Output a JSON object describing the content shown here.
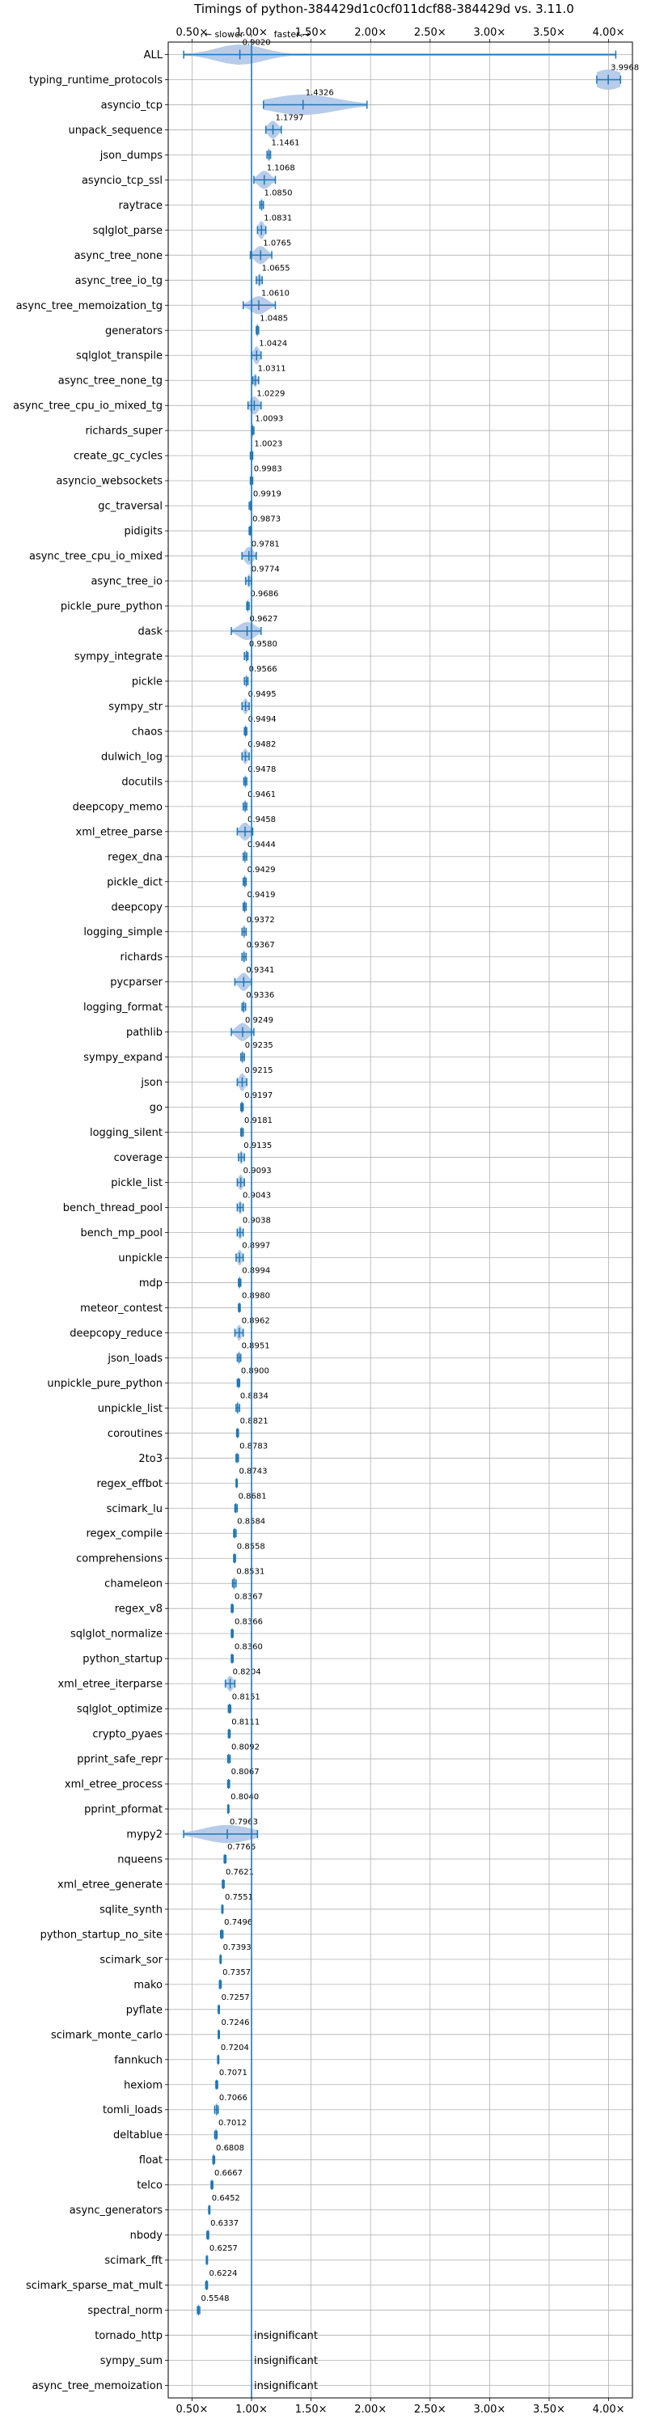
{
  "chart_data": {
    "type": "violin",
    "title": "Timings of python-384429d1c0cf011dcf88-384429d vs. 3.11.0",
    "direction_labels": [
      "← slower",
      "faster →"
    ],
    "xlim": [
      0.3,
      4.2
    ],
    "x_ticks": [
      0.5,
      1.0,
      1.5,
      2.0,
      2.5,
      3.0,
      3.5,
      4.0
    ],
    "x_tick_labels": [
      "0.50×",
      "1.00×",
      "1.50×",
      "2.00×",
      "2.50×",
      "3.00×",
      "3.50×",
      "4.00×"
    ],
    "reference_line": 1.0,
    "grid": true,
    "colors": {
      "violin": "#aec7e8",
      "line": "#1f77b4"
    },
    "insignificant_label": "insignificant",
    "rows": [
      {
        "name": "ALL",
        "value": 0.902,
        "label": "0.9020",
        "min": 0.43,
        "max": 4.06,
        "spread": 0.2,
        "height": 0.9
      },
      {
        "name": "typing_runtime_protocols",
        "value": 3.9968,
        "label": "3.9968",
        "min": 3.9,
        "max": 4.1,
        "spread": 0.12,
        "height": 0.9
      },
      {
        "name": "asyncio_tcp",
        "value": 1.4326,
        "label": "1.4326",
        "min": 1.1,
        "max": 1.97,
        "spread": 0.28,
        "height": 0.9
      },
      {
        "name": "unpack_sequence",
        "value": 1.1797,
        "label": "1.1797",
        "min": 1.12,
        "max": 1.25,
        "spread": 0.04,
        "height": 0.8
      },
      {
        "name": "json_dumps",
        "value": 1.1461,
        "label": "1.1461",
        "min": 1.13,
        "max": 1.16,
        "spread": 0.01,
        "height": 0.6
      },
      {
        "name": "asyncio_tcp_ssl",
        "value": 1.1068,
        "label": "1.1068",
        "min": 1.02,
        "max": 1.2,
        "spread": 0.05,
        "height": 0.8
      },
      {
        "name": "raytrace",
        "value": 1.085,
        "label": "1.0850",
        "min": 1.07,
        "max": 1.1,
        "spread": 0.01,
        "height": 0.6
      },
      {
        "name": "sqlglot_parse",
        "value": 1.0831,
        "label": "1.0831",
        "min": 1.05,
        "max": 1.12,
        "spread": 0.025,
        "height": 0.8
      },
      {
        "name": "async_tree_none",
        "value": 1.0765,
        "label": "1.0765",
        "min": 0.99,
        "max": 1.17,
        "spread": 0.05,
        "height": 0.8
      },
      {
        "name": "async_tree_io_tg",
        "value": 1.0655,
        "label": "1.0655",
        "min": 1.04,
        "max": 1.09,
        "spread": 0.015,
        "height": 0.6
      },
      {
        "name": "async_tree_memoization_tg",
        "value": 1.061,
        "label": "1.0610",
        "min": 0.93,
        "max": 1.2,
        "spread": 0.07,
        "height": 0.8
      },
      {
        "name": "generators",
        "value": 1.0485,
        "label": "1.0485",
        "min": 1.04,
        "max": 1.06,
        "spread": 0.01,
        "height": 0.6
      },
      {
        "name": "sqlglot_transpile",
        "value": 1.0424,
        "label": "1.0424",
        "min": 1.0,
        "max": 1.08,
        "spread": 0.025,
        "height": 0.8
      },
      {
        "name": "async_tree_none_tg",
        "value": 1.0311,
        "label": "1.0311",
        "min": 1.01,
        "max": 1.06,
        "spread": 0.015,
        "height": 0.6
      },
      {
        "name": "async_tree_cpu_io_mixed_tg",
        "value": 1.0229,
        "label": "1.0229",
        "min": 0.97,
        "max": 1.08,
        "spread": 0.035,
        "height": 0.8
      },
      {
        "name": "richards_super",
        "value": 1.0093,
        "label": "1.0093",
        "min": 1.0,
        "max": 1.02,
        "spread": 0.008,
        "height": 0.6
      },
      {
        "name": "create_gc_cycles",
        "value": 1.0023,
        "label": "1.0023",
        "min": 0.99,
        "max": 1.01,
        "spread": 0.008,
        "height": 0.6
      },
      {
        "name": "asyncio_websockets",
        "value": 0.9983,
        "label": "0.9983",
        "min": 0.99,
        "max": 1.01,
        "spread": 0.005,
        "height": 0.5
      },
      {
        "name": "gc_traversal",
        "value": 0.9919,
        "label": "0.9919",
        "min": 0.98,
        "max": 1.0,
        "spread": 0.005,
        "height": 0.5
      },
      {
        "name": "pidigits",
        "value": 0.9873,
        "label": "0.9873",
        "min": 0.98,
        "max": 0.995,
        "spread": 0.005,
        "height": 0.5
      },
      {
        "name": "async_tree_cpu_io_mixed",
        "value": 0.9781,
        "label": "0.9781",
        "min": 0.92,
        "max": 1.04,
        "spread": 0.035,
        "height": 0.8
      },
      {
        "name": "async_tree_io",
        "value": 0.9774,
        "label": "0.9774",
        "min": 0.95,
        "max": 1.0,
        "spread": 0.015,
        "height": 0.6
      },
      {
        "name": "pickle_pure_python",
        "value": 0.9686,
        "label": "0.9686",
        "min": 0.96,
        "max": 0.98,
        "spread": 0.008,
        "height": 0.6
      },
      {
        "name": "dask",
        "value": 0.9627,
        "label": "0.9627",
        "min": 0.83,
        "max": 1.08,
        "spread": 0.07,
        "height": 0.8
      },
      {
        "name": "sympy_integrate",
        "value": 0.958,
        "label": "0.9580",
        "min": 0.94,
        "max": 0.97,
        "spread": 0.01,
        "height": 0.6
      },
      {
        "name": "pickle",
        "value": 0.9566,
        "label": "0.9566",
        "min": 0.94,
        "max": 0.97,
        "spread": 0.01,
        "height": 0.6
      },
      {
        "name": "sympy_str",
        "value": 0.9495,
        "label": "0.9495",
        "min": 0.92,
        "max": 0.98,
        "spread": 0.02,
        "height": 0.7
      },
      {
        "name": "chaos",
        "value": 0.9494,
        "label": "0.9494",
        "min": 0.94,
        "max": 0.96,
        "spread": 0.008,
        "height": 0.6
      },
      {
        "name": "dulwich_log",
        "value": 0.9482,
        "label": "0.9482",
        "min": 0.92,
        "max": 0.98,
        "spread": 0.02,
        "height": 0.7
      },
      {
        "name": "docutils",
        "value": 0.9478,
        "label": "0.9478",
        "min": 0.935,
        "max": 0.96,
        "spread": 0.008,
        "height": 0.6
      },
      {
        "name": "deepcopy_memo",
        "value": 0.9461,
        "label": "0.9461",
        "min": 0.93,
        "max": 0.96,
        "spread": 0.01,
        "height": 0.6
      },
      {
        "name": "xml_etree_parse",
        "value": 0.9458,
        "label": "0.9458",
        "min": 0.88,
        "max": 1.01,
        "spread": 0.04,
        "height": 0.8
      },
      {
        "name": "regex_dna",
        "value": 0.9444,
        "label": "0.9444",
        "min": 0.93,
        "max": 0.96,
        "spread": 0.01,
        "height": 0.6
      },
      {
        "name": "pickle_dict",
        "value": 0.9429,
        "label": "0.9429",
        "min": 0.93,
        "max": 0.955,
        "spread": 0.01,
        "height": 0.6
      },
      {
        "name": "deepcopy",
        "value": 0.9419,
        "label": "0.9419",
        "min": 0.93,
        "max": 0.955,
        "spread": 0.01,
        "height": 0.6
      },
      {
        "name": "logging_simple",
        "value": 0.9372,
        "label": "0.9372",
        "min": 0.92,
        "max": 0.955,
        "spread": 0.01,
        "height": 0.6
      },
      {
        "name": "richards",
        "value": 0.9367,
        "label": "0.9367",
        "min": 0.92,
        "max": 0.955,
        "spread": 0.01,
        "height": 0.6
      },
      {
        "name": "pycparser",
        "value": 0.9341,
        "label": "0.9341",
        "min": 0.86,
        "max": 1.0,
        "spread": 0.04,
        "height": 0.8
      },
      {
        "name": "logging_format",
        "value": 0.9336,
        "label": "0.9336",
        "min": 0.92,
        "max": 0.95,
        "spread": 0.01,
        "height": 0.6
      },
      {
        "name": "pathlib",
        "value": 0.9249,
        "label": "0.9249",
        "min": 0.83,
        "max": 1.02,
        "spread": 0.05,
        "height": 0.8
      },
      {
        "name": "sympy_expand",
        "value": 0.9235,
        "label": "0.9235",
        "min": 0.91,
        "max": 0.94,
        "spread": 0.01,
        "height": 0.6
      },
      {
        "name": "json",
        "value": 0.9215,
        "label": "0.9215",
        "min": 0.88,
        "max": 0.96,
        "spread": 0.025,
        "height": 0.8
      },
      {
        "name": "go",
        "value": 0.9197,
        "label": "0.9197",
        "min": 0.91,
        "max": 0.93,
        "spread": 0.008,
        "height": 0.6
      },
      {
        "name": "logging_silent",
        "value": 0.9181,
        "label": "0.9181",
        "min": 0.91,
        "max": 0.93,
        "spread": 0.005,
        "height": 0.5
      },
      {
        "name": "coverage",
        "value": 0.9135,
        "label": "0.9135",
        "min": 0.89,
        "max": 0.94,
        "spread": 0.015,
        "height": 0.6
      },
      {
        "name": "pickle_list",
        "value": 0.9093,
        "label": "0.9093",
        "min": 0.88,
        "max": 0.94,
        "spread": 0.02,
        "height": 0.7
      },
      {
        "name": "bench_thread_pool",
        "value": 0.9043,
        "label": "0.9043",
        "min": 0.88,
        "max": 0.93,
        "spread": 0.015,
        "height": 0.6
      },
      {
        "name": "bench_mp_pool",
        "value": 0.9038,
        "label": "0.9038",
        "min": 0.88,
        "max": 0.93,
        "spread": 0.015,
        "height": 0.6
      },
      {
        "name": "unpickle",
        "value": 0.8997,
        "label": "0.8997",
        "min": 0.87,
        "max": 0.93,
        "spread": 0.02,
        "height": 0.7
      },
      {
        "name": "mdp",
        "value": 0.8994,
        "label": "0.8994",
        "min": 0.89,
        "max": 0.91,
        "spread": 0.008,
        "height": 0.6
      },
      {
        "name": "meteor_contest",
        "value": 0.898,
        "label": "0.8980",
        "min": 0.89,
        "max": 0.905,
        "spread": 0.005,
        "height": 0.5
      },
      {
        "name": "deepcopy_reduce",
        "value": 0.8962,
        "label": "0.8962",
        "min": 0.86,
        "max": 0.93,
        "spread": 0.02,
        "height": 0.7
      },
      {
        "name": "json_loads",
        "value": 0.8951,
        "label": "0.8951",
        "min": 0.88,
        "max": 0.91,
        "spread": 0.01,
        "height": 0.6
      },
      {
        "name": "unpickle_pure_python",
        "value": 0.89,
        "label": "0.8900",
        "min": 0.88,
        "max": 0.9,
        "spread": 0.005,
        "height": 0.5
      },
      {
        "name": "unpickle_list",
        "value": 0.8834,
        "label": "0.8834",
        "min": 0.87,
        "max": 0.9,
        "spread": 0.01,
        "height": 0.6
      },
      {
        "name": "coroutines",
        "value": 0.8821,
        "label": "0.8821",
        "min": 0.875,
        "max": 0.89,
        "spread": 0.005,
        "height": 0.5
      },
      {
        "name": "2to3",
        "value": 0.8783,
        "label": "0.8783",
        "min": 0.87,
        "max": 0.89,
        "spread": 0.005,
        "height": 0.5
      },
      {
        "name": "regex_effbot",
        "value": 0.8743,
        "label": "0.8743",
        "min": 0.87,
        "max": 0.88,
        "spread": 0.004,
        "height": 0.5
      },
      {
        "name": "scimark_lu",
        "value": 0.8681,
        "label": "0.8681",
        "min": 0.86,
        "max": 0.88,
        "spread": 0.005,
        "height": 0.5
      },
      {
        "name": "regex_compile",
        "value": 0.8584,
        "label": "0.8584",
        "min": 0.85,
        "max": 0.87,
        "spread": 0.005,
        "height": 0.5
      },
      {
        "name": "comprehensions",
        "value": 0.8558,
        "label": "0.8558",
        "min": 0.85,
        "max": 0.865,
        "spread": 0.004,
        "height": 0.5
      },
      {
        "name": "chameleon",
        "value": 0.8531,
        "label": "0.8531",
        "min": 0.84,
        "max": 0.87,
        "spread": 0.01,
        "height": 0.6
      },
      {
        "name": "regex_v8",
        "value": 0.8367,
        "label": "0.8367",
        "min": 0.83,
        "max": 0.845,
        "spread": 0.004,
        "height": 0.5
      },
      {
        "name": "sqlglot_normalize",
        "value": 0.8366,
        "label": "0.8366",
        "min": 0.83,
        "max": 0.845,
        "spread": 0.004,
        "height": 0.5
      },
      {
        "name": "python_startup",
        "value": 0.836,
        "label": "0.8360",
        "min": 0.83,
        "max": 0.845,
        "spread": 0.004,
        "height": 0.5
      },
      {
        "name": "xml_etree_iterparse",
        "value": 0.8204,
        "label": "0.8204",
        "min": 0.78,
        "max": 0.86,
        "spread": 0.025,
        "height": 0.7
      },
      {
        "name": "sqlglot_optimize",
        "value": 0.8151,
        "label": "0.8151",
        "min": 0.805,
        "max": 0.825,
        "spread": 0.005,
        "height": 0.5
      },
      {
        "name": "crypto_pyaes",
        "value": 0.8111,
        "label": "0.8111",
        "min": 0.805,
        "max": 0.82,
        "spread": 0.004,
        "height": 0.5
      },
      {
        "name": "pprint_safe_repr",
        "value": 0.8092,
        "label": "0.8092",
        "min": 0.8,
        "max": 0.82,
        "spread": 0.004,
        "height": 0.5
      },
      {
        "name": "xml_etree_process",
        "value": 0.8067,
        "label": "0.8067",
        "min": 0.8,
        "max": 0.815,
        "spread": 0.004,
        "height": 0.5
      },
      {
        "name": "pprint_pformat",
        "value": 0.804,
        "label": "0.8040",
        "min": 0.8,
        "max": 0.81,
        "spread": 0.004,
        "height": 0.5
      },
      {
        "name": "mypy2",
        "value": 0.7963,
        "label": "0.7963",
        "min": 0.43,
        "max": 1.05,
        "spread": 0.2,
        "height": 0.8
      },
      {
        "name": "nqueens",
        "value": 0.7766,
        "label": "0.7766",
        "min": 0.77,
        "max": 0.785,
        "spread": 0.004,
        "height": 0.5
      },
      {
        "name": "xml_etree_generate",
        "value": 0.7621,
        "label": "0.7621",
        "min": 0.755,
        "max": 0.77,
        "spread": 0.004,
        "height": 0.5
      },
      {
        "name": "sqlite_synth",
        "value": 0.7551,
        "label": "0.7551",
        "min": 0.75,
        "max": 0.76,
        "spread": 0.004,
        "height": 0.5
      },
      {
        "name": "python_startup_no_site",
        "value": 0.7496,
        "label": "0.7496",
        "min": 0.74,
        "max": 0.76,
        "spread": 0.004,
        "height": 0.5
      },
      {
        "name": "scimark_sor",
        "value": 0.7393,
        "label": "0.7393",
        "min": 0.735,
        "max": 0.745,
        "spread": 0.004,
        "height": 0.5
      },
      {
        "name": "mako",
        "value": 0.7357,
        "label": "0.7357",
        "min": 0.73,
        "max": 0.745,
        "spread": 0.004,
        "height": 0.5
      },
      {
        "name": "pyflate",
        "value": 0.7257,
        "label": "0.7257",
        "min": 0.72,
        "max": 0.73,
        "spread": 0.004,
        "height": 0.5
      },
      {
        "name": "scimark_monte_carlo",
        "value": 0.7246,
        "label": "0.7246",
        "min": 0.72,
        "max": 0.73,
        "spread": 0.004,
        "height": 0.5
      },
      {
        "name": "fannkuch",
        "value": 0.7204,
        "label": "0.7204",
        "min": 0.715,
        "max": 0.725,
        "spread": 0.004,
        "height": 0.5
      },
      {
        "name": "hexiom",
        "value": 0.7071,
        "label": "0.7071",
        "min": 0.7,
        "max": 0.715,
        "spread": 0.004,
        "height": 0.5
      },
      {
        "name": "tomli_loads",
        "value": 0.7066,
        "label": "0.7066",
        "min": 0.69,
        "max": 0.72,
        "spread": 0.012,
        "height": 0.6
      },
      {
        "name": "deltablue",
        "value": 0.7012,
        "label": "0.7012",
        "min": 0.69,
        "max": 0.71,
        "spread": 0.006,
        "height": 0.6
      },
      {
        "name": "float",
        "value": 0.6808,
        "label": "0.6808",
        "min": 0.675,
        "max": 0.69,
        "spread": 0.006,
        "height": 0.6
      },
      {
        "name": "telco",
        "value": 0.6667,
        "label": "0.6667",
        "min": 0.66,
        "max": 0.675,
        "spread": 0.004,
        "height": 0.5
      },
      {
        "name": "async_generators",
        "value": 0.6452,
        "label": "0.6452",
        "min": 0.64,
        "max": 0.65,
        "spread": 0.004,
        "height": 0.5
      },
      {
        "name": "nbody",
        "value": 0.6337,
        "label": "0.6337",
        "min": 0.625,
        "max": 0.64,
        "spread": 0.004,
        "height": 0.5
      },
      {
        "name": "scimark_fft",
        "value": 0.6257,
        "label": "0.6257",
        "min": 0.62,
        "max": 0.63,
        "spread": 0.004,
        "height": 0.5
      },
      {
        "name": "scimark_sparse_mat_mult",
        "value": 0.6224,
        "label": "0.6224",
        "min": 0.615,
        "max": 0.63,
        "spread": 0.004,
        "height": 0.5
      },
      {
        "name": "spectral_norm",
        "value": 0.5548,
        "label": "0.5548",
        "min": 0.545,
        "max": 0.565,
        "spread": 0.004,
        "height": 0.5
      },
      {
        "name": "tornado_http",
        "insignificant": true
      },
      {
        "name": "sympy_sum",
        "insignificant": true
      },
      {
        "name": "async_tree_memoization",
        "insignificant": true
      }
    ]
  }
}
